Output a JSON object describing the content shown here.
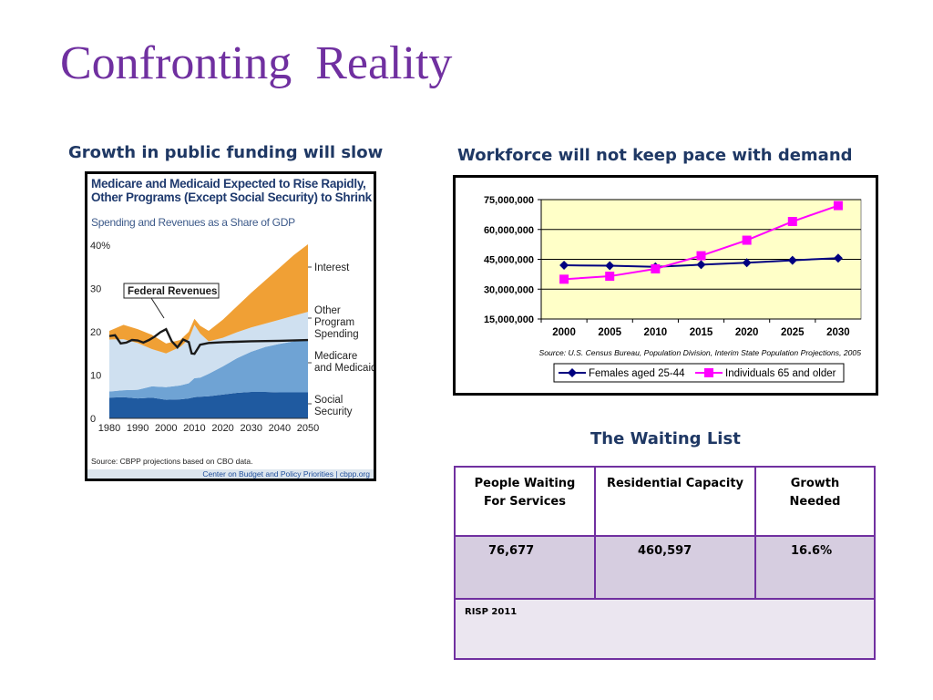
{
  "title": "Confronting  Reality",
  "left": {
    "heading": "Growth in public funding will slow",
    "chart_title_line1": "Medicare and Medicaid Expected to Rise Rapidly,",
    "chart_title_line2": "Other Programs (Except Social Security) to Shrink",
    "chart_subtitle": "Spending and Revenues as a Share of GDP",
    "source": "Source: CBPP projections based on CBO data.",
    "credit": "Center on Budget and Policy Priorities | cbpp.org"
  },
  "right": {
    "heading": "Workforce will not keep pace with demand",
    "source": "Source: U.S. Census Bureau, Population Division, Interim State Population Projections, 2005"
  },
  "waiting": {
    "heading": "The Waiting List",
    "headers": [
      "People Waiting For Services",
      "Residential Capacity",
      "Growth Needed"
    ],
    "header_lines": [
      [
        "People Waiting",
        "For Services"
      ],
      [
        "Residential Capacity"
      ],
      [
        "Growth",
        "Needed"
      ]
    ],
    "values": [
      "76,677",
      "460,597",
      "16.6%"
    ],
    "footer": "RISP 2011"
  },
  "chart_data": [
    {
      "type": "area",
      "title": "Medicare and Medicaid Expected to Rise Rapidly, Other Programs (Except Social Security) to Shrink",
      "subtitle": "Spending and Revenues as a Share of GDP",
      "x": [
        1980,
        1985,
        1990,
        1995,
        2000,
        2005,
        2008,
        2010,
        2012,
        2015,
        2020,
        2025,
        2030,
        2035,
        2040,
        2045,
        2050
      ],
      "xticks": [
        1980,
        1990,
        2000,
        2010,
        2020,
        2030,
        2040,
        2050
      ],
      "yticks": [
        0,
        10,
        20,
        30,
        40
      ],
      "ytick_labels": [
        "0",
        "10",
        "20",
        "30",
        "40%"
      ],
      "ylim": [
        0,
        40
      ],
      "stacked": true,
      "series": [
        {
          "name": "Social Security",
          "color": "#1f5aa0",
          "values": [
            4.8,
            4.9,
            4.6,
            4.8,
            4.3,
            4.4,
            4.6,
            4.9,
            5.0,
            5.1,
            5.5,
            5.9,
            6.1,
            6.1,
            6.0,
            6.0,
            6.0
          ]
        },
        {
          "name": "Medicare and Medicaid",
          "color": "#6fa3d4",
          "values": [
            1.4,
            1.6,
            2.0,
            2.6,
            2.9,
            3.2,
            3.5,
            4.4,
            4.4,
            5.2,
            6.5,
            8.0,
            9.3,
            10.4,
            11.2,
            11.8,
            12.3
          ]
        },
        {
          "name": "Other Program Spending",
          "color": "#cfe0f0",
          "values": [
            12.0,
            11.8,
            10.8,
            8.6,
            7.8,
            8.9,
            10.2,
            12.3,
            10.2,
            7.5,
            6.6,
            6.0,
            5.6,
            5.4,
            5.6,
            5.9,
            6.3
          ]
        },
        {
          "name": "Interest",
          "color": "#f0a035",
          "values": [
            2.0,
            3.3,
            3.2,
            3.3,
            2.3,
            1.6,
            1.7,
            1.4,
            1.8,
            2.4,
            4.2,
            6.0,
            8.0,
            10.0,
            12.0,
            14.0,
            15.6
          ]
        }
      ],
      "line": {
        "name": "Federal Revenues",
        "color": "#1a1a1a",
        "x": [
          1980,
          1982,
          1984,
          1986,
          1988,
          1990,
          1992,
          1994,
          1996,
          1998,
          2000,
          2002,
          2004,
          2006,
          2008,
          2009,
          2010,
          2012,
          2015,
          2020,
          2030,
          2040,
          2050
        ],
        "values": [
          19.0,
          19.2,
          17.3,
          17.5,
          18.1,
          18.0,
          17.5,
          18.1,
          18.9,
          19.9,
          20.6,
          17.8,
          16.4,
          18.2,
          17.6,
          15.0,
          14.9,
          17.0,
          17.4,
          17.6,
          17.8,
          17.9,
          18.1
        ]
      },
      "labels": [
        "Interest",
        "Other Program Spending",
        "Medicare and Medicaid",
        "Social Security",
        "Federal Revenues"
      ]
    },
    {
      "type": "line",
      "categories": [
        "2000",
        "2005",
        "2010",
        "2015",
        "2020",
        "2025",
        "2030"
      ],
      "yticks": [
        15000000,
        30000000,
        45000000,
        60000000,
        75000000
      ],
      "ytick_labels": [
        "15,000,000",
        "30,000,000",
        "45,000,000",
        "60,000,000",
        "75,000,000"
      ],
      "ylim": [
        15000000,
        75000000
      ],
      "grid": true,
      "legend": "bottom",
      "series": [
        {
          "name": "Females aged 25-44",
          "color": "#000080",
          "marker": "diamond",
          "values": [
            42000000,
            41800000,
            41200000,
            42300000,
            43300000,
            44500000,
            45600000
          ]
        },
        {
          "name": "Individuals 65 and older",
          "color": "#ff00ff",
          "marker": "square",
          "values": [
            35000000,
            36500000,
            40200000,
            46800000,
            54600000,
            64000000,
            72000000
          ]
        }
      ]
    }
  ]
}
